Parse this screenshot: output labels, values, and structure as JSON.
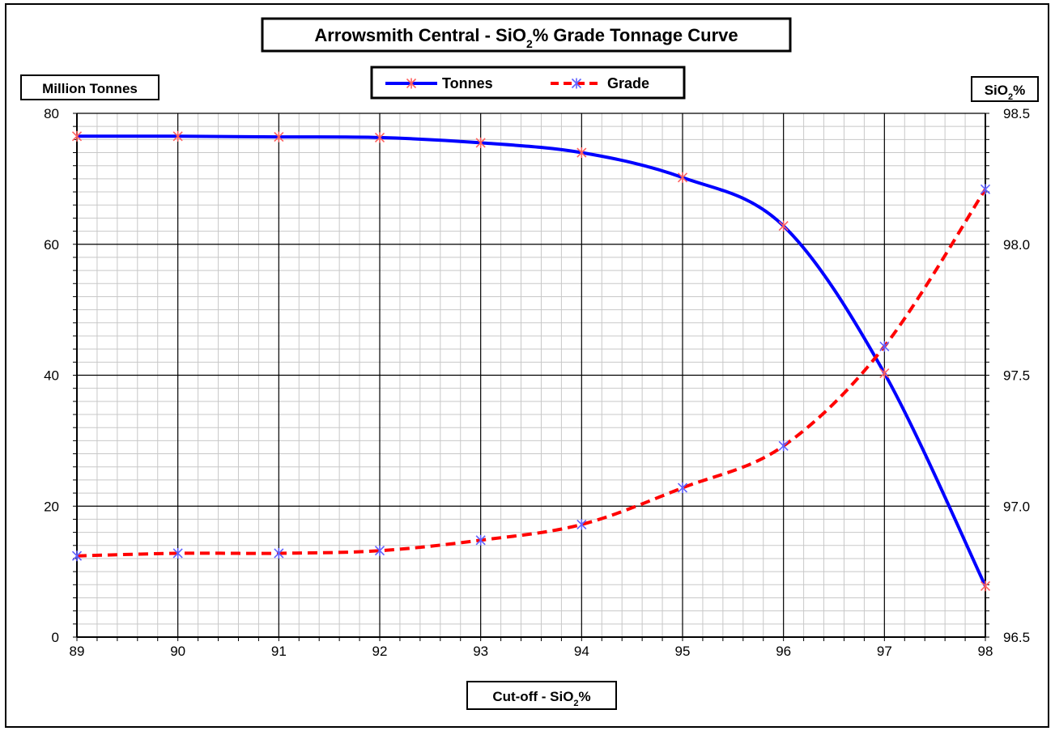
{
  "chart_data": {
    "type": "line",
    "title": "Arrowsmith Central - SiO₂% Grade Tonnage Curve",
    "xlabel": "Cut-off - SiO₂%",
    "ylabel": "Million Tonnes",
    "y2label": "SiO₂%",
    "xlim": [
      89,
      98
    ],
    "ylim": [
      0,
      80
    ],
    "y2lim": [
      96.5,
      98.5
    ],
    "x": [
      89,
      90,
      91,
      92,
      93,
      94,
      95,
      96,
      97,
      98
    ],
    "x_ticks": [
      "89",
      "90",
      "91",
      "92",
      "93",
      "94",
      "95",
      "96",
      "97",
      "98"
    ],
    "y_ticks": [
      "0",
      "20",
      "40",
      "60",
      "80"
    ],
    "y2_ticks": [
      "96.5",
      "97.0",
      "97.5",
      "98.0",
      "98.5"
    ],
    "series": [
      {
        "name": "Tonnes",
        "axis": "left",
        "color": "#0000FF",
        "marker_color": "#FF6060",
        "style": "solid",
        "values": [
          76.5,
          76.5,
          76.4,
          76.3,
          75.5,
          74.0,
          70.2,
          62.8,
          40.3,
          7.8
        ]
      },
      {
        "name": "Grade",
        "axis": "right",
        "color": "#FF0000",
        "marker_color": "#6060FF",
        "style": "dashed",
        "values": [
          96.81,
          96.82,
          96.82,
          96.83,
          96.87,
          96.93,
          97.07,
          97.23,
          97.61,
          98.21
        ]
      }
    ],
    "grid": true,
    "legend": "top-center"
  }
}
